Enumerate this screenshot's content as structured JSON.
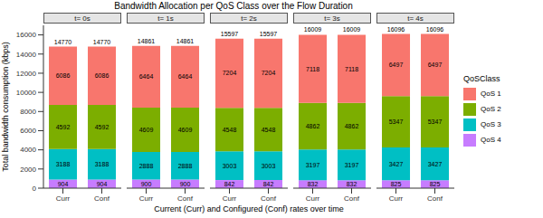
{
  "chart_data": {
    "type": "bar",
    "title": "Bandwidth Allocation per QoS Class over the Flow Duration",
    "x_label": "Current (Curr) and Configured (Conf) rates over time",
    "y_label": "Total bandwidth consumption (kbps)",
    "legend_title": "QoSClass",
    "legend": "right",
    "stacked": true,
    "data_labels": true,
    "grid": false,
    "ylim": [
      0,
      17000
    ],
    "yticks": [
      0,
      2000,
      4000,
      6000,
      8000,
      10000,
      12000,
      14000,
      16000
    ],
    "series": [
      {
        "name": "QoS 1",
        "color": "#F8766D"
      },
      {
        "name": "QoS 2",
        "color": "#7CAE00"
      },
      {
        "name": "QoS 3",
        "color": "#00BFC4"
      },
      {
        "name": "QoS 4",
        "color": "#C77CFF"
      }
    ],
    "panels": [
      {
        "title": "t= 0s",
        "categories": [
          "Curr",
          "Conf"
        ],
        "totals": [
          14770,
          14770
        ],
        "series": [
          {
            "name": "QoS 1",
            "values": [
              6086,
              6086
            ]
          },
          {
            "name": "QoS 2",
            "values": [
              4592,
              4592
            ]
          },
          {
            "name": "QoS 3",
            "values": [
              3188,
              3188
            ]
          },
          {
            "name": "QoS 4",
            "values": [
              904,
              904
            ]
          }
        ]
      },
      {
        "title": "t= 1s",
        "categories": [
          "Curr",
          "Conf"
        ],
        "totals": [
          14861,
          14861
        ],
        "series": [
          {
            "name": "QoS 1",
            "values": [
              6464,
              6464
            ]
          },
          {
            "name": "QoS 2",
            "values": [
              4609,
              4609
            ]
          },
          {
            "name": "QoS 3",
            "values": [
              2888,
              2888
            ]
          },
          {
            "name": "QoS 4",
            "values": [
              900,
              900
            ]
          }
        ]
      },
      {
        "title": "t= 2s",
        "categories": [
          "Curr",
          "Conf"
        ],
        "totals": [
          15597,
          15597
        ],
        "series": [
          {
            "name": "QoS 1",
            "values": [
              7204,
              7204
            ]
          },
          {
            "name": "QoS 2",
            "values": [
              4548,
              4548
            ]
          },
          {
            "name": "QoS 3",
            "values": [
              3003,
              3003
            ]
          },
          {
            "name": "QoS 4",
            "values": [
              842,
              842
            ]
          }
        ]
      },
      {
        "title": "t= 3s",
        "categories": [
          "Curr",
          "Conf"
        ],
        "totals": [
          16009,
          16009
        ],
        "series": [
          {
            "name": "QoS 1",
            "values": [
              7118,
              7118
            ]
          },
          {
            "name": "QoS 2",
            "values": [
              4862,
              4862
            ]
          },
          {
            "name": "QoS 3",
            "values": [
              3197,
              3197
            ]
          },
          {
            "name": "QoS 4",
            "values": [
              832,
              832
            ]
          }
        ]
      },
      {
        "title": "t= 4s",
        "categories": [
          "Curr",
          "Conf"
        ],
        "totals": [
          16096,
          16096
        ],
        "series": [
          {
            "name": "QoS 1",
            "values": [
              6497,
              6497
            ]
          },
          {
            "name": "QoS 2",
            "values": [
              5347,
              5347
            ]
          },
          {
            "name": "QoS 3",
            "values": [
              3427,
              3427
            ]
          },
          {
            "name": "QoS 4",
            "values": [
              825,
              825
            ]
          }
        ]
      }
    ]
  }
}
